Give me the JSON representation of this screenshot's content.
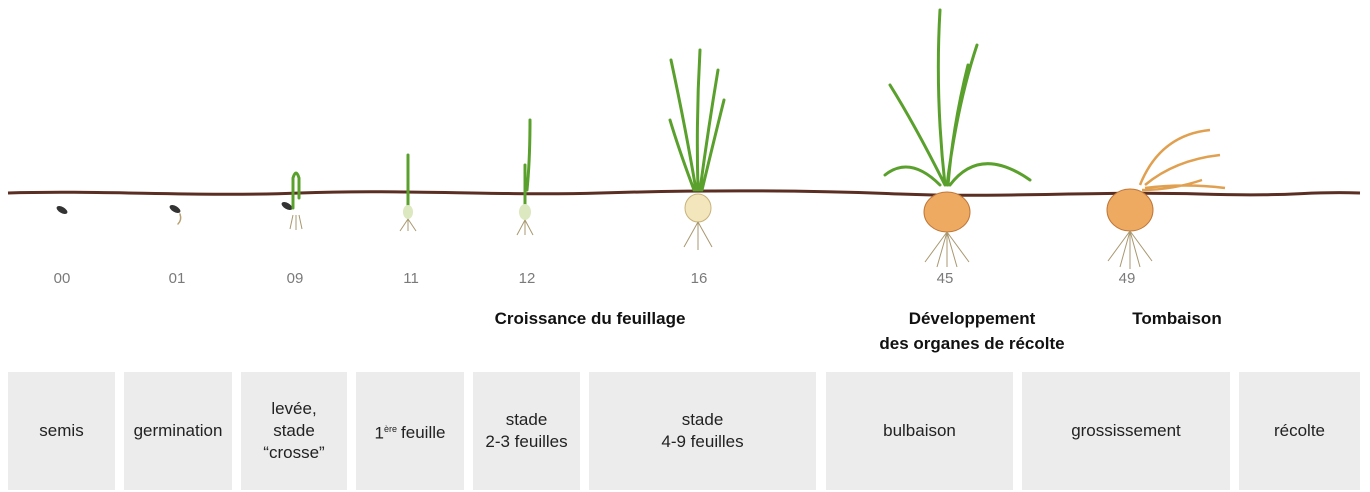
{
  "stage_codes": [
    "00",
    "01",
    "09",
    "11",
    "12",
    "16",
    "45",
    "49"
  ],
  "phases": [
    {
      "lines": [
        "Croissance du feuillage"
      ]
    },
    {
      "lines": [
        "Développement",
        "des organes de récolte"
      ]
    },
    {
      "lines": [
        "Tombaison"
      ]
    }
  ],
  "stages": [
    {
      "lines": [
        "semis"
      ]
    },
    {
      "lines": [
        "germination"
      ]
    },
    {
      "lines": [
        "levée,",
        "stade",
        "“crosse”"
      ]
    },
    {
      "number": "1",
      "superscript": "ère",
      "text": "feuille"
    },
    {
      "lines": [
        "stade",
        "2-3 feuilles"
      ]
    },
    {
      "lines": [
        "stade",
        "4-9 feuilles"
      ]
    },
    {
      "lines": [
        "bulbaison"
      ]
    },
    {
      "lines": [
        "grossissement"
      ]
    },
    {
      "lines": [
        "récolte"
      ]
    }
  ]
}
